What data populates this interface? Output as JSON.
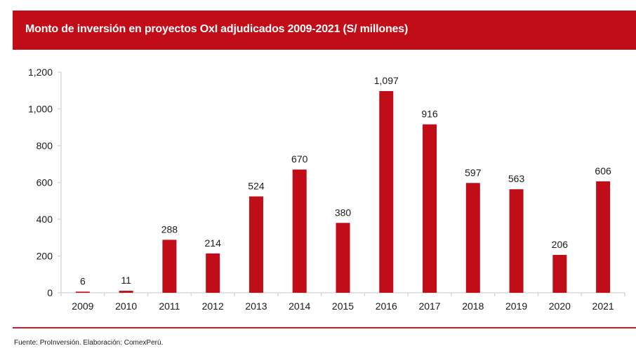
{
  "header": {
    "title": "Monto de inversión en proyectos OxI adjudicados  2009-2021 (S/ millones)"
  },
  "footer": {
    "source": "Fuente: ProInversión. Elaboración: ComexPerú."
  },
  "colors": {
    "bar": "#c00d18",
    "header": "#c00d18",
    "rule": "#c8202b",
    "axis": "#d9d9d9"
  },
  "chart_data": {
    "type": "bar",
    "title": "Monto de inversión en proyectos OxI adjudicados  2009-2021 (S/ millones)",
    "xlabel": "",
    "ylabel": "",
    "categories": [
      "2009",
      "2010",
      "2011",
      "2012",
      "2013",
      "2014",
      "2015",
      "2016",
      "2017",
      "2018",
      "2019",
      "2020",
      "2021"
    ],
    "values": [
      6,
      11,
      288,
      214,
      524,
      670,
      380,
      1097,
      916,
      597,
      563,
      206,
      606
    ],
    "value_labels": [
      "6",
      "11",
      "288",
      "214",
      "524",
      "670",
      "380",
      "1,097",
      "916",
      "597",
      "563",
      "206",
      "606"
    ],
    "ylim": [
      0,
      1200
    ],
    "yticks": [
      0,
      200,
      400,
      600,
      800,
      1000,
      1200
    ],
    "ytick_labels": [
      "0",
      "200",
      "400",
      "600",
      "800",
      "1,000",
      "1,200"
    ],
    "grid": false,
    "legend": "none"
  }
}
